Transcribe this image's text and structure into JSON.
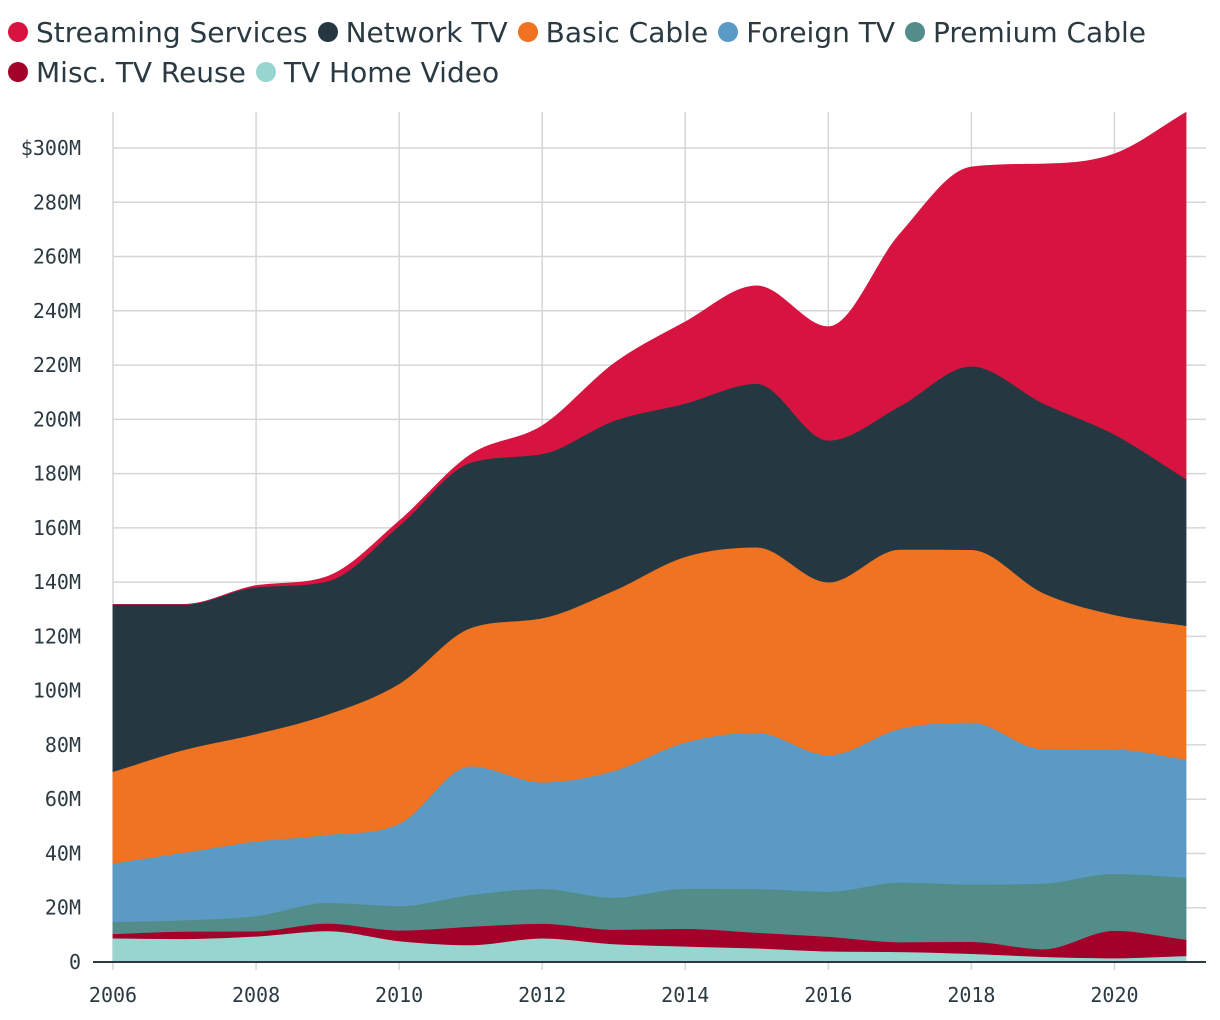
{
  "chart_data": {
    "type": "area",
    "stacked": true,
    "x": [
      2006,
      2007,
      2008,
      2009,
      2010,
      2011,
      2012,
      2013,
      2014,
      2015,
      2016,
      2017,
      2018,
      2019,
      2020,
      2021
    ],
    "xticks": [
      2006,
      2008,
      2010,
      2012,
      2014,
      2016,
      2018,
      2020
    ],
    "xtick_labels": [
      "2006",
      "2008",
      "2010",
      "2012",
      "2014",
      "2016",
      "2018",
      "2020"
    ],
    "yticks": [
      0,
      20,
      40,
      60,
      80,
      100,
      120,
      140,
      160,
      180,
      200,
      220,
      240,
      260,
      280,
      300
    ],
    "ytick_labels": [
      "0",
      "20M",
      "40M",
      "60M",
      "80M",
      "100M",
      "120M",
      "140M",
      "160M",
      "180M",
      "200M",
      "220M",
      "240M",
      "260M",
      "280M",
      "$300M"
    ],
    "ylim": [
      0,
      300
    ],
    "grid": true,
    "legend_position": "top-left",
    "series": [
      {
        "name": "TV Home Video",
        "color": "#99d5cf",
        "values": [
          8.8,
          8.6,
          9.5,
          11.5,
          7.8,
          6.3,
          8.8,
          6.7,
          5.8,
          5.1,
          4.0,
          3.8,
          3.1,
          2.0,
          1.5,
          2.3
        ]
      },
      {
        "name": "Misc. TV Reuse",
        "color": "#a4012a",
        "values": [
          1.6,
          2.7,
          1.9,
          2.8,
          3.9,
          6.8,
          5.4,
          5.3,
          6.5,
          5.8,
          5.4,
          3.6,
          4.4,
          2.8,
          10.1,
          6.0
        ]
      },
      {
        "name": "Premium Cable",
        "color": "#538d8a",
        "values": [
          4.4,
          4.2,
          5.6,
          7.6,
          9.0,
          11.7,
          12.8,
          11.8,
          14.8,
          16.1,
          16.6,
          22.0,
          21.2,
          24.2,
          21.0,
          22.9
        ]
      },
      {
        "name": "Foreign TV",
        "color": "#5a9ac5",
        "values": [
          21.6,
          24.9,
          27.5,
          25.0,
          30.3,
          47.4,
          39.3,
          46.7,
          53.9,
          57.6,
          50.3,
          56.6,
          59.6,
          49.5,
          45.8,
          43.5
        ]
      },
      {
        "name": "Basic Cable",
        "color": "#f07322",
        "values": [
          33.8,
          37.9,
          39.6,
          44.4,
          51.6,
          51.0,
          60.5,
          66.4,
          68.4,
          68.3,
          63.7,
          66.1,
          63.7,
          57.6,
          49.6,
          49.3
        ]
      },
      {
        "name": "Network TV",
        "color": "#253842",
        "values": [
          61.6,
          53.5,
          54.1,
          49.1,
          58.2,
          60.9,
          60.5,
          62.6,
          56.5,
          60.3,
          52.3,
          52.8,
          67.6,
          69.9,
          66.5,
          54.1
        ]
      },
      {
        "name": "Streaming Services",
        "color": "#d7143f",
        "values": [
          0,
          0,
          0.5,
          1.7,
          1.7,
          2.9,
          10.3,
          21.0,
          30.0,
          36.0,
          41.8,
          63.4,
          73.4,
          88.1,
          103.3,
          135.0
        ]
      }
    ]
  },
  "legend": {
    "rows": [
      [
        {
          "label": "Streaming Services",
          "color": "#d7143f"
        },
        {
          "label": "Network TV",
          "color": "#253842"
        },
        {
          "label": "Basic Cable",
          "color": "#f07322"
        },
        {
          "label": "Foreign TV",
          "color": "#5a9ac5"
        },
        {
          "label": "Premium Cable",
          "color": "#538d8a"
        }
      ],
      [
        {
          "label": "Misc. TV Reuse",
          "color": "#a4012a"
        },
        {
          "label": "TV Home Video",
          "color": "#99d5cf"
        }
      ]
    ]
  }
}
